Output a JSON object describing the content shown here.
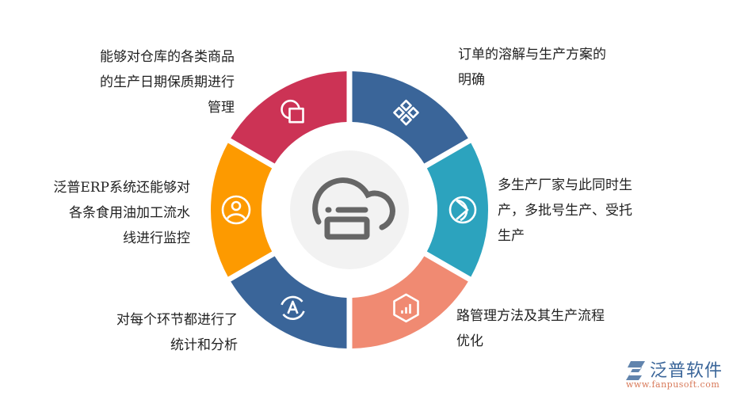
{
  "segments": [
    {
      "icon": "diamonds-grid-icon",
      "color": "#3a6599",
      "text": [
        "订单的溶解与生产方案的",
        "明确"
      ]
    },
    {
      "icon": "pie-play-icon",
      "color": "#2ca3be",
      "text": [
        "多生产厂家与此同时生",
        "产，多批号生产、受托",
        "生产"
      ]
    },
    {
      "icon": "hexagon-chart-icon",
      "color": "#f08a72",
      "text": [
        "路管理方法及其生产流程",
        "优化"
      ]
    },
    {
      "icon": "refresh-a-icon",
      "color": "#3a6599",
      "text": [
        "对每个环节都进行了",
        "统计和分析"
      ]
    },
    {
      "icon": "user-circle-icon",
      "color": "#fd9a00",
      "text": [
        "泛普ERP系统还能够对",
        "各条食用油加工流水",
        "线进行监控"
      ]
    },
    {
      "icon": "shapes-icon",
      "color": "#cc3355",
      "text": [
        "能够对仓库的各类商品",
        "的生产日期保质期进行",
        "管理"
      ]
    }
  ],
  "center": {
    "icon": "cloud-printer-icon",
    "bg": "#f2f2f2",
    "stroke": "#666666"
  },
  "logo": {
    "name": "泛普软件",
    "url": "www.fanpusoft.com"
  }
}
